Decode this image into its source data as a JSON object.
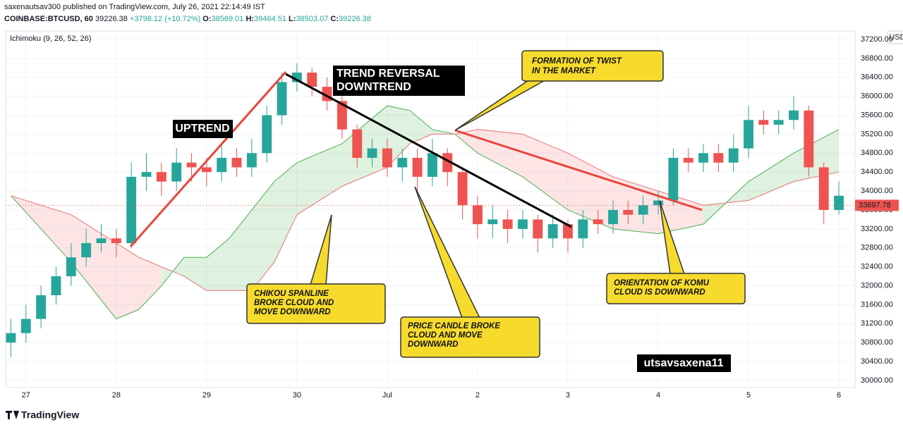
{
  "header": {
    "publisher": "saxenautsav300 published on TradingView.com, July 26, 2021 22:14:49 IST",
    "symbol": "COINBASE:BTCUSD, 60",
    "price": "39226.38",
    "change": "+3798.12 (+10.72%)",
    "o_label": "O:",
    "o": "38569.01",
    "h_label": "H:",
    "h": "39464.51",
    "l_label": "L:",
    "l": "38503.07",
    "c_label": "C:",
    "c": "39226.38"
  },
  "annotations": {
    "uptrend": "UPTREND",
    "reversal": [
      "TREND REVERSAL",
      "DOWNTREND"
    ],
    "twist": [
      "FORMATION OF TWIST",
      "IN THE MARKET"
    ],
    "chikou": [
      "CHIKOU SPANLINE",
      "BROKE CLOUD AND",
      "MOVE DOWNWARD"
    ],
    "price_candle": [
      "PRICE CANDLE BROKE",
      "CLOUD AND MOVE",
      "DOWNWARD"
    ],
    "komu": [
      "ORIENTATION OF KOMU",
      "CLOUD IS DOWNWARD"
    ],
    "author": "utsavsaxena11"
  },
  "footer": "TradingView",
  "chart_data": {
    "type": "candlestick",
    "indicator": "Ichimoku (9, 26, 52, 26)",
    "currency": "USD",
    "up_color": "#26a69a",
    "down_color": "#ef5350",
    "x": [
      -4,
      0,
      4,
      8,
      12,
      16,
      20,
      24,
      28,
      32,
      36,
      40,
      44,
      48,
      52,
      56,
      60,
      64,
      68,
      72,
      76,
      80,
      84,
      88,
      92,
      96,
      100,
      104,
      108,
      112,
      116,
      120,
      124,
      128,
      132,
      136,
      140,
      144,
      148,
      152,
      156,
      160,
      164,
      168,
      172,
      176,
      180,
      184,
      188,
      192,
      196,
      200,
      204,
      208,
      212,
      216
    ],
    "open": [
      30800,
      31000,
      31300,
      31800,
      32200,
      32600,
      32900,
      33000,
      32900,
      34300,
      34400,
      34200,
      34600,
      34500,
      34400,
      34700,
      34500,
      34800,
      35600,
      36300,
      36500,
      36200,
      35900,
      35300,
      34700,
      34900,
      34500,
      34700,
      34300,
      34800,
      34400,
      33700,
      33300,
      33400,
      33200,
      33400,
      33000,
      33300,
      33000,
      33400,
      33300,
      33600,
      33500,
      33700,
      33800,
      34700,
      34600,
      34800,
      34600,
      34900,
      35500,
      35400,
      35500,
      35700,
      34500,
      33600
    ],
    "high": [
      31300,
      31600,
      32000,
      32400,
      32900,
      33200,
      33300,
      33200,
      34600,
      34800,
      34600,
      34900,
      34800,
      34700,
      35000,
      34900,
      35100,
      35800,
      36500,
      36700,
      36600,
      36400,
      36000,
      35400,
      35100,
      35100,
      34900,
      34900,
      35100,
      34900,
      34500,
      33900,
      33700,
      33600,
      33600,
      33500,
      33500,
      33400,
      33600,
      33600,
      33800,
      33800,
      33900,
      34000,
      34900,
      34900,
      35000,
      35000,
      35200,
      35800,
      35700,
      35700,
      36000,
      35800,
      34600,
      34200
    ],
    "low": [
      30500,
      30800,
      31100,
      31600,
      32000,
      32400,
      32700,
      32600,
      32800,
      34000,
      33900,
      34000,
      34200,
      34100,
      34200,
      34300,
      34300,
      34600,
      35400,
      36100,
      36000,
      35700,
      35100,
      34500,
      34500,
      34300,
      34200,
      34000,
      34100,
      34100,
      33400,
      33000,
      33000,
      32900,
      33000,
      32700,
      32800,
      32700,
      32800,
      33100,
      33100,
      33300,
      33300,
      33500,
      33700,
      34400,
      34400,
      34400,
      34400,
      34700,
      35200,
      35200,
      35300,
      34300,
      33300,
      33500
    ],
    "close": [
      31000,
      31300,
      31800,
      32200,
      32600,
      32900,
      33000,
      32900,
      34300,
      34400,
      34200,
      34600,
      34500,
      34400,
      34700,
      34500,
      34800,
      35600,
      36300,
      36500,
      36200,
      35900,
      35300,
      34700,
      34900,
      34500,
      34700,
      34300,
      34800,
      34400,
      33700,
      33300,
      33400,
      33200,
      33400,
      33000,
      33300,
      33000,
      33400,
      33300,
      33600,
      33500,
      33700,
      33800,
      34700,
      34600,
      34800,
      34600,
      34900,
      35500,
      35400,
      35500,
      35700,
      34500,
      33600,
      33900
    ],
    "cloud_x": [
      -4,
      12,
      24,
      30,
      36,
      42,
      48,
      54,
      60,
      66,
      72,
      84,
      96,
      102,
      108,
      114,
      120,
      132,
      144,
      156,
      168,
      180,
      192,
      204,
      216
    ],
    "span_a": [
      33900,
      32500,
      31300,
      31500,
      32000,
      32600,
      32600,
      33000,
      33600,
      34200,
      34600,
      35000,
      35800,
      35700,
      35300,
      35200,
      34800,
      34300,
      33600,
      33200,
      33100,
      33300,
      34200,
      34800,
      35300
    ],
    "span_b": [
      33900,
      33500,
      32900,
      32600,
      32400,
      32200,
      31900,
      31900,
      31900,
      32500,
      33500,
      34100,
      34500,
      35000,
      35200,
      35200,
      35300,
      35200,
      34800,
      34300,
      34000,
      33700,
      33800,
      34200,
      34400
    ],
    "last_price": 33697.78,
    "xlim": [
      -5.4,
      220.3
    ],
    "xticks": [
      {
        "value": 0,
        "label": "27"
      },
      {
        "value": 24,
        "label": "28"
      },
      {
        "value": 48,
        "label": "29"
      },
      {
        "value": 72,
        "label": "30"
      },
      {
        "value": 96,
        "label": "Jul"
      },
      {
        "value": 120,
        "label": "2"
      },
      {
        "value": 144,
        "label": "3"
      },
      {
        "value": 168,
        "label": "4"
      },
      {
        "value": 192,
        "label": "5"
      },
      {
        "value": 216,
        "label": "6"
      }
    ],
    "ylim": [
      29851,
      37378
    ],
    "yticks": [
      {
        "value": 30000,
        "label": "30000.00"
      },
      {
        "value": 30400,
        "label": "30400.00"
      },
      {
        "value": 30800,
        "label": "30800.00"
      },
      {
        "value": 31200,
        "label": "31200.00"
      },
      {
        "value": 31600,
        "label": "31600.00"
      },
      {
        "value": 32000,
        "label": "32000.00"
      },
      {
        "value": 32400,
        "label": "32400.00"
      },
      {
        "value": 32800,
        "label": "32800.00"
      },
      {
        "value": 33200,
        "label": "33200.00"
      },
      {
        "value": 33600,
        "label": "33600.00"
      },
      {
        "value": 34000,
        "label": "34000.00"
      },
      {
        "value": 34400,
        "label": "34400.00"
      },
      {
        "value": 34800,
        "label": "34800.00"
      },
      {
        "value": 35200,
        "label": "35200.00"
      },
      {
        "value": 35600,
        "label": "35600.00"
      },
      {
        "value": 36000,
        "label": "36000.00"
      },
      {
        "value": 36400,
        "label": "36400.00"
      },
      {
        "value": 36800,
        "label": "36800.00"
      },
      {
        "value": 37200,
        "label": "37200.00"
      }
    ],
    "grid": true
  }
}
